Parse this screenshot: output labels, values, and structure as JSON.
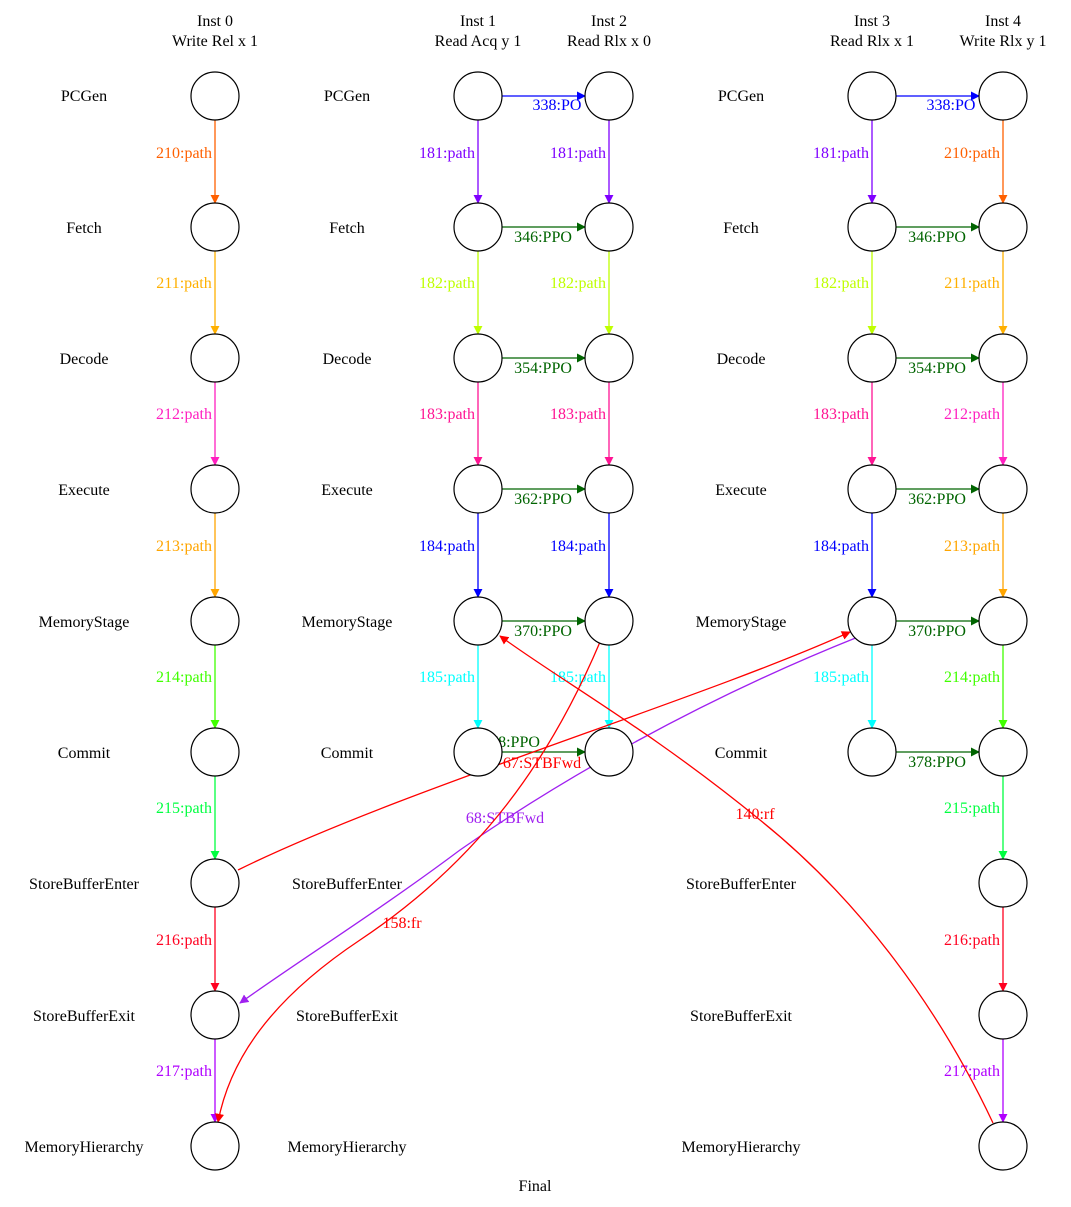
{
  "footer": "Final",
  "instructions": [
    {
      "id": "inst0",
      "title": "Inst 0",
      "subtitle": "Write Rel x 1"
    },
    {
      "id": "inst1",
      "title": "Inst 1",
      "subtitle": "Read Acq y 1"
    },
    {
      "id": "inst2",
      "title": "Inst 2",
      "subtitle": "Read Rlx x 0"
    },
    {
      "id": "inst3",
      "title": "Inst 3",
      "subtitle": "Read Rlx x 1"
    },
    {
      "id": "inst4",
      "title": "Inst 4",
      "subtitle": "Write Rlx y 1"
    }
  ],
  "stages": [
    "PCGen",
    "Fetch",
    "Decode",
    "Execute",
    "MemoryStage",
    "Commit",
    "StoreBufferEnter",
    "StoreBufferExit",
    "MemoryHierarchy"
  ],
  "colors": {
    "PO": "#0000ff",
    "PPO": "#006400",
    "rf": "#ff0000",
    "fr": "#ff0000",
    "STBFwd_red": "#ff0000",
    "STBFwd_purple": "#a020f0",
    "path181": "#7f00ff",
    "path182": "#bfff00",
    "path183": "#ff1493",
    "path184": "#0000ff",
    "path185": "#00ffff",
    "path210": "#ff6000",
    "path211": "#ffb000",
    "path212": "#ff20c0",
    "path213": "#ffa500",
    "path214": "#40ff00",
    "path215": "#00ff40",
    "path216": "#ff0020",
    "path217": "#b000ff"
  },
  "nodes": [
    {
      "inst": "inst0",
      "stage": "PCGen"
    },
    {
      "inst": "inst0",
      "stage": "Fetch"
    },
    {
      "inst": "inst0",
      "stage": "Decode"
    },
    {
      "inst": "inst0",
      "stage": "Execute"
    },
    {
      "inst": "inst0",
      "stage": "MemoryStage"
    },
    {
      "inst": "inst0",
      "stage": "Commit"
    },
    {
      "inst": "inst0",
      "stage": "StoreBufferEnter"
    },
    {
      "inst": "inst0",
      "stage": "StoreBufferExit"
    },
    {
      "inst": "inst0",
      "stage": "MemoryHierarchy"
    },
    {
      "inst": "inst1",
      "stage": "PCGen"
    },
    {
      "inst": "inst1",
      "stage": "Fetch"
    },
    {
      "inst": "inst1",
      "stage": "Decode"
    },
    {
      "inst": "inst1",
      "stage": "Execute"
    },
    {
      "inst": "inst1",
      "stage": "MemoryStage"
    },
    {
      "inst": "inst1",
      "stage": "Commit"
    },
    {
      "inst": "inst2",
      "stage": "PCGen"
    },
    {
      "inst": "inst2",
      "stage": "Fetch"
    },
    {
      "inst": "inst2",
      "stage": "Decode"
    },
    {
      "inst": "inst2",
      "stage": "Execute"
    },
    {
      "inst": "inst2",
      "stage": "MemoryStage"
    },
    {
      "inst": "inst2",
      "stage": "Commit"
    },
    {
      "inst": "inst3",
      "stage": "PCGen"
    },
    {
      "inst": "inst3",
      "stage": "Fetch"
    },
    {
      "inst": "inst3",
      "stage": "Decode"
    },
    {
      "inst": "inst3",
      "stage": "Execute"
    },
    {
      "inst": "inst3",
      "stage": "MemoryStage"
    },
    {
      "inst": "inst3",
      "stage": "Commit"
    },
    {
      "inst": "inst4",
      "stage": "PCGen"
    },
    {
      "inst": "inst4",
      "stage": "Fetch"
    },
    {
      "inst": "inst4",
      "stage": "Decode"
    },
    {
      "inst": "inst4",
      "stage": "Execute"
    },
    {
      "inst": "inst4",
      "stage": "MemoryStage"
    },
    {
      "inst": "inst4",
      "stage": "Commit"
    },
    {
      "inst": "inst4",
      "stage": "StoreBufferEnter"
    },
    {
      "inst": "inst4",
      "stage": "StoreBufferExit"
    },
    {
      "inst": "inst4",
      "stage": "MemoryHierarchy"
    }
  ],
  "edges": [
    {
      "label": "210:path",
      "color": "#ff6000"
    },
    {
      "label": "211:path",
      "color": "#ffb000"
    },
    {
      "label": "212:path",
      "color": "#ff20c0"
    },
    {
      "label": "213:path",
      "color": "#ffa500"
    },
    {
      "label": "214:path",
      "color": "#40ff00"
    },
    {
      "label": "215:path",
      "color": "#00ff40"
    },
    {
      "label": "216:path",
      "color": "#ff0020"
    },
    {
      "label": "217:path",
      "color": "#b000ff"
    },
    {
      "label": "181:path",
      "color": "#7f00ff"
    },
    {
      "label": "182:path",
      "color": "#bfff00"
    },
    {
      "label": "183:path",
      "color": "#ff1493"
    },
    {
      "label": "184:path",
      "color": "#0000ff"
    },
    {
      "label": "185:path",
      "color": "#00ffff"
    },
    {
      "label": "181:path",
      "color": "#7f00ff"
    },
    {
      "label": "182:path",
      "color": "#bfff00"
    },
    {
      "label": "183:path",
      "color": "#ff1493"
    },
    {
      "label": "184:path",
      "color": "#0000ff"
    },
    {
      "label": "185:path",
      "color": "#00ffff"
    },
    {
      "label": "181:path",
      "color": "#7f00ff"
    },
    {
      "label": "182:path",
      "color": "#bfff00"
    },
    {
      "label": "183:path",
      "color": "#ff1493"
    },
    {
      "label": "184:path",
      "color": "#0000ff"
    },
    {
      "label": "185:path",
      "color": "#00ffff"
    },
    {
      "label": "210:path",
      "color": "#ff6000"
    },
    {
      "label": "211:path",
      "color": "#ffb000"
    },
    {
      "label": "212:path",
      "color": "#ff20c0"
    },
    {
      "label": "213:path",
      "color": "#ffa500"
    },
    {
      "label": "214:path",
      "color": "#40ff00"
    },
    {
      "label": "215:path",
      "color": "#00ff40"
    },
    {
      "label": "216:path",
      "color": "#ff0020"
    },
    {
      "label": "217:path",
      "color": "#b000ff"
    },
    {
      "label": "338:PO",
      "color": "#0000ff"
    },
    {
      "label": "346:PPO",
      "color": "#006400"
    },
    {
      "label": "354:PPO",
      "color": "#006400"
    },
    {
      "label": "362:PPO",
      "color": "#006400"
    },
    {
      "label": "370:PPO",
      "color": "#006400"
    },
    {
      "label": "378:PPO",
      "color": "#006400"
    },
    {
      "label": "338:PO",
      "color": "#0000ff"
    },
    {
      "label": "346:PPO",
      "color": "#006400"
    },
    {
      "label": "354:PPO",
      "color": "#006400"
    },
    {
      "label": "362:PPO",
      "color": "#006400"
    },
    {
      "label": "370:PPO",
      "color": "#006400"
    },
    {
      "label": "378:PPO",
      "color": "#006400"
    },
    {
      "label": "67:STBFwd",
      "color": "#ff0000"
    },
    {
      "label": "68:STBFwd",
      "color": "#a020f0"
    },
    {
      "label": "158:fr",
      "color": "#ff0000"
    },
    {
      "label": "140:rf",
      "color": "#ff0000"
    }
  ]
}
